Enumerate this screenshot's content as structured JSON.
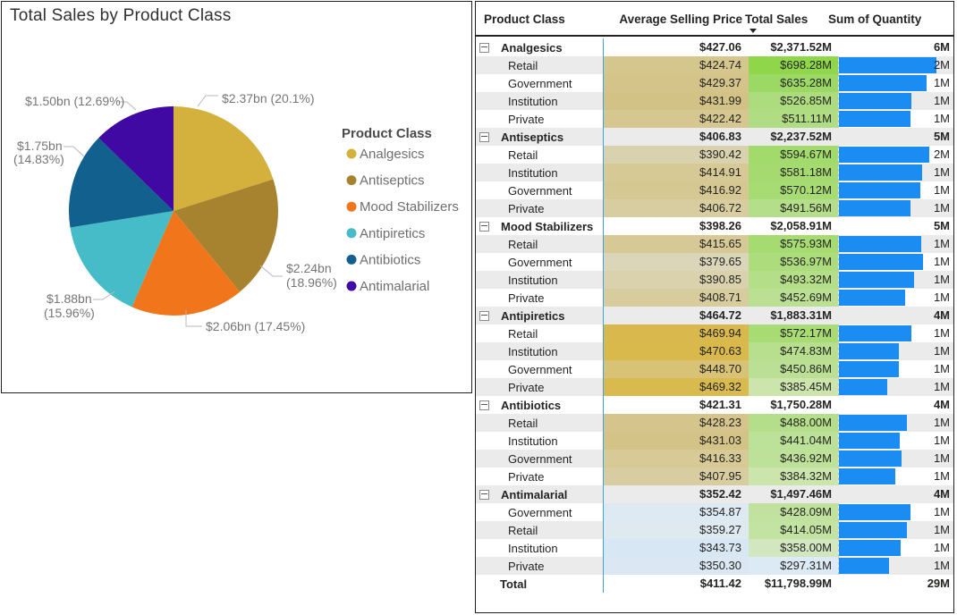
{
  "chart_data": [
    {
      "type": "pie",
      "title": "Total Sales by Product Class",
      "legend_title": "Product Class",
      "legend_position": "right",
      "direction": "clockwise",
      "start_angle_deg": 0,
      "slices": [
        {
          "label": "Analgesics",
          "value_bn": 2.37,
          "pct": 20.1,
          "color": "#D4B03C",
          "callout": [
            "$2.37bn (20.1%)"
          ]
        },
        {
          "label": "Antiseptics",
          "value_bn": 2.24,
          "pct": 18.96,
          "color": "#A8832F",
          "callout": [
            "$2.24bn",
            "(18.96%)"
          ]
        },
        {
          "label": "Mood Stabilizers",
          "value_bn": 2.06,
          "pct": 17.45,
          "color": "#F1751A",
          "callout": [
            "$2.06bn (17.45%)"
          ]
        },
        {
          "label": "Antipiretics",
          "value_bn": 1.88,
          "pct": 15.96,
          "color": "#45BCC8",
          "callout": [
            "$1.88bn",
            "(15.96%)"
          ]
        },
        {
          "label": "Antibiotics",
          "value_bn": 1.75,
          "pct": 14.83,
          "color": "#11608D",
          "callout": [
            "$1.75bn",
            "(14.83%)"
          ]
        },
        {
          "label": "Antimalarial",
          "value_bn": 1.5,
          "pct": 12.69,
          "color": "#4109A4",
          "callout": [
            "$1.50bn (12.69%)"
          ]
        }
      ]
    },
    {
      "type": "table",
      "columns": [
        "Product Class",
        "Average Selling Price",
        "Total Sales",
        "Sum of Quantity"
      ],
      "sort": {
        "column": "Total Sales",
        "direction": "descending"
      },
      "bar_color": "#1b8cf2",
      "groups": [
        {
          "name": "Analgesics",
          "asp": "$427.06",
          "sales": "$2,371.52M",
          "qty": "6M",
          "rows": [
            {
              "name": "Retail",
              "asp": "$424.74",
              "asp_bg": "#D5C68D",
              "sales": "$698.28M",
              "sales_bg": "#8FD64B",
              "qty": "2M",
              "bar": 1.0
            },
            {
              "name": "Government",
              "asp": "$429.37",
              "asp_bg": "#D4C489",
              "sales": "$635.28M",
              "sales_bg": "#9CD964",
              "qty": "1M",
              "bar": 0.9
            },
            {
              "name": "Institution",
              "asp": "$431.99",
              "asp_bg": "#D3C285",
              "sales": "$526.85M",
              "sales_bg": "#ADDC7E",
              "qty": "1M",
              "bar": 0.742
            },
            {
              "name": "Private",
              "asp": "$422.42",
              "asp_bg": "#D5C78F",
              "sales": "$511.11M",
              "sales_bg": "#B0DD84",
              "qty": "1M",
              "bar": 0.736
            }
          ]
        },
        {
          "name": "Antiseptics",
          "asp": "$406.83",
          "sales": "$2,237.52M",
          "qty": "5M",
          "rows": [
            {
              "name": "Retail",
              "asp": "$390.42",
              "asp_bg": "#D9D2AE",
              "sales": "$594.67M",
              "sales_bg": "#A2DA6C",
              "qty": "2M",
              "bar": 0.926
            },
            {
              "name": "Institution",
              "asp": "$414.91",
              "asp_bg": "#D6C996",
              "sales": "$581.18M",
              "sales_bg": "#A5DA70",
              "qty": "1M",
              "bar": 0.852
            },
            {
              "name": "Government",
              "asp": "$416.92",
              "asp_bg": "#D6C893",
              "sales": "$570.12M",
              "sales_bg": "#A7DB74",
              "qty": "1M",
              "bar": 0.832
            },
            {
              "name": "Private",
              "asp": "$406.72",
              "asp_bg": "#D8CDA0",
              "sales": "$491.56M",
              "sales_bg": "#B4DE89",
              "qty": "1M",
              "bar": 0.735
            }
          ]
        },
        {
          "name": "Mood Stabilizers",
          "asp": "$398.26",
          "sales": "$2,058.91M",
          "qty": "5M",
          "rows": [
            {
              "name": "Retail",
              "asp": "$415.65",
              "asp_bg": "#D6C995",
              "sales": "$575.93M",
              "sales_bg": "#A6DB72",
              "qty": "1M",
              "bar": 0.843
            },
            {
              "name": "Government",
              "asp": "$379.65",
              "asp_bg": "#DBD6BA",
              "sales": "$536.97M",
              "sales_bg": "#ADDC7D",
              "qty": "1M",
              "bar": 0.86
            },
            {
              "name": "Institution",
              "asp": "$390.85",
              "asp_bg": "#D9D2AD",
              "sales": "$493.32M",
              "sales_bg": "#B4DE88",
              "qty": "1M",
              "bar": 0.768
            },
            {
              "name": "Private",
              "asp": "$408.71",
              "asp_bg": "#D7CC9E",
              "sales": "$452.69M",
              "sales_bg": "#BBE094",
              "qty": "1M",
              "bar": 0.674
            }
          ]
        },
        {
          "name": "Antipiretics",
          "asp": "$464.72",
          "sales": "$1,883.31M",
          "qty": "4M",
          "rows": [
            {
              "name": "Retail",
              "asp": "$469.94",
              "asp_bg": "#D9B94D",
              "sales": "$572.17M",
              "sales_bg": "#A8DB74",
              "qty": "1M",
              "bar": 0.741
            },
            {
              "name": "Institution",
              "asp": "$470.63",
              "asp_bg": "#D9B94C",
              "sales": "$474.83M",
              "sales_bg": "#B8DF8E",
              "qty": "1M",
              "bar": 0.614
            },
            {
              "name": "Government",
              "asp": "$448.70",
              "asp_bg": "#D7C275",
              "sales": "$450.86M",
              "sales_bg": "#BBE095",
              "qty": "1M",
              "bar": 0.611
            },
            {
              "name": "Private",
              "asp": "$469.32",
              "asp_bg": "#D9BA4E",
              "sales": "$385.45M",
              "sales_bg": "#CBE5AC",
              "qty": "1M",
              "bar": 0.499
            }
          ]
        },
        {
          "name": "Antibiotics",
          "asp": "$421.31",
          "sales": "$1,750.28M",
          "qty": "4M",
          "rows": [
            {
              "name": "Retail",
              "asp": "$428.23",
              "asp_bg": "#D5C58C",
              "sales": "$488.00M",
              "sales_bg": "#B5DE8A",
              "qty": "1M",
              "bar": 0.693
            },
            {
              "name": "Institution",
              "asp": "$431.03",
              "asp_bg": "#D4C387",
              "sales": "$441.04M",
              "sales_bg": "#BCE198",
              "qty": "1M",
              "bar": 0.622
            },
            {
              "name": "Government",
              "asp": "$416.33",
              "asp_bg": "#D7CA97",
              "sales": "$436.92M",
              "sales_bg": "#BDE199",
              "qty": "1M",
              "bar": 0.638
            },
            {
              "name": "Private",
              "asp": "$407.95",
              "asp_bg": "#D8CDA0",
              "sales": "$384.32M",
              "sales_bg": "#CBE5AD",
              "qty": "1M",
              "bar": 0.573
            }
          ]
        },
        {
          "name": "Antimalarial",
          "asp": "$352.42",
          "sales": "$1,497.46M",
          "qty": "4M",
          "rows": [
            {
              "name": "Government",
              "asp": "$354.87",
              "asp_bg": "#DDE9F3",
              "sales": "$428.09M",
              "sales_bg": "#C0E29E",
              "qty": "1M",
              "bar": 0.734
            },
            {
              "name": "Retail",
              "asp": "$359.27",
              "asp_bg": "#DFE9F0",
              "sales": "$414.05M",
              "sales_bg": "#C3E3A3",
              "qty": "1M",
              "bar": 0.701
            },
            {
              "name": "Institution",
              "asp": "$343.73",
              "asp_bg": "#D8E7F4",
              "sales": "$358.00M",
              "sales_bg": "#D2E7C0",
              "qty": "1M",
              "bar": 0.633
            },
            {
              "name": "Private",
              "asp": "$350.30",
              "asp_bg": "#DBE8F3",
              "sales": "$297.31M",
              "sales_bg": "#DBEAF5",
              "qty": "1M",
              "bar": 0.516
            }
          ]
        }
      ],
      "total": {
        "name": "Total",
        "asp": "$411.42",
        "sales": "$11,798.99M",
        "qty": "29M"
      }
    }
  ]
}
